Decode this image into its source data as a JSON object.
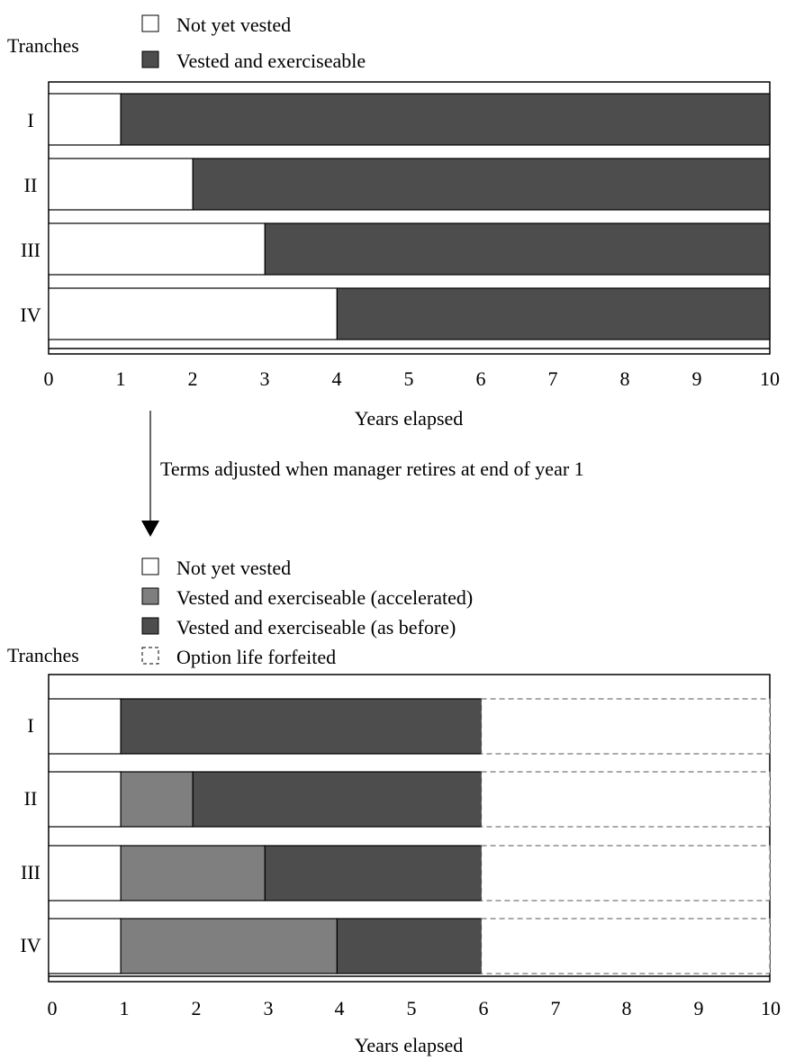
{
  "chart_data": [
    {
      "type": "bar",
      "orientation": "horizontal",
      "stacked": true,
      "ylabel": "Tranches",
      "xlabel": "Years elapsed",
      "xlim": [
        0,
        10
      ],
      "x_ticks": [
        "0",
        "1",
        "2",
        "3",
        "4",
        "5",
        "6",
        "7",
        "8",
        "9",
        "10"
      ],
      "categories": [
        "I",
        "II",
        "III",
        "IV"
      ],
      "legend": [
        {
          "label": "Not yet vested",
          "color": "#ffffff",
          "style": "solid"
        },
        {
          "label": "Vested and exerciseable",
          "color": "#4d4d4d",
          "style": "solid"
        }
      ],
      "series": [
        {
          "name": "Not yet vested",
          "color": "#ffffff",
          "style": "solid",
          "values": [
            1,
            2,
            3,
            4
          ]
        },
        {
          "name": "Vested and exerciseable",
          "color": "#4d4d4d",
          "style": "solid",
          "values": [
            9,
            8,
            7,
            6
          ]
        }
      ]
    },
    {
      "type": "bar",
      "orientation": "horizontal",
      "stacked": true,
      "ylabel": "Tranches",
      "xlabel": "Years elapsed",
      "xlim": [
        0,
        10
      ],
      "x_ticks": [
        "0",
        "1",
        "2",
        "3",
        "4",
        "5",
        "6",
        "7",
        "8",
        "9",
        "10"
      ],
      "categories": [
        "I",
        "II",
        "III",
        "IV"
      ],
      "legend": [
        {
          "label": "Not yet vested",
          "color": "#ffffff",
          "style": "solid"
        },
        {
          "label": "Vested and exerciseable (accelerated)",
          "color": "#7f7f7f",
          "style": "solid"
        },
        {
          "label": "Vested and exerciseable (as before)",
          "color": "#4d4d4d",
          "style": "solid"
        },
        {
          "label": "Option life forfeited",
          "color": "#ffffff",
          "style": "dashed"
        }
      ],
      "series": [
        {
          "name": "Not yet vested",
          "color": "#ffffff",
          "style": "solid",
          "values": [
            1,
            1,
            1,
            1
          ]
        },
        {
          "name": "Vested and exerciseable (accelerated)",
          "color": "#7f7f7f",
          "style": "solid",
          "values": [
            0,
            1,
            2,
            3
          ]
        },
        {
          "name": "Vested and exerciseable (as before)",
          "color": "#4d4d4d",
          "style": "solid",
          "values": [
            5,
            4,
            3,
            2
          ]
        },
        {
          "name": "Option life forfeited",
          "color": "#ffffff",
          "style": "dashed",
          "values": [
            4,
            4,
            4,
            4
          ]
        }
      ]
    }
  ],
  "annotation": {
    "text": "Terms adjusted when manager retires at end of year 1"
  }
}
